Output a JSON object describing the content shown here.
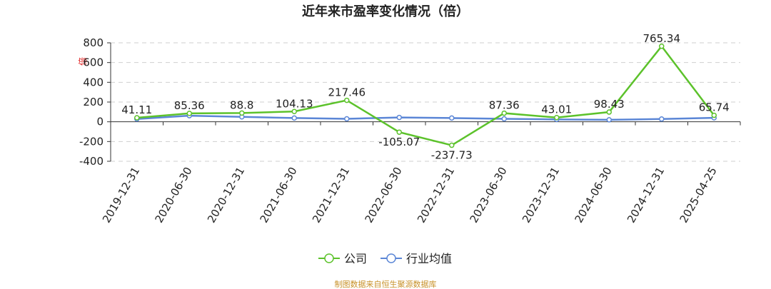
{
  "chart_data": {
    "type": "line",
    "title": "近年来市盈率变化情况（倍）",
    "ylabel": "倍",
    "ylim": [
      -400,
      800
    ],
    "yticks": [
      800,
      600,
      400,
      200,
      0,
      -200,
      -400
    ],
    "grid": true,
    "legend_position": "bottom",
    "categories": [
      "2019-12-31",
      "2020-06-30",
      "2020-12-31",
      "2021-06-30",
      "2021-12-31",
      "2022-06-30",
      "2022-12-31",
      "2023-06-30",
      "2023-12-31",
      "2024-06-30",
      "2024-12-31",
      "2025-04-25"
    ],
    "series": [
      {
        "name": "公司",
        "color": "#5cc22b",
        "values": [
          41.11,
          85.36,
          88.8,
          104.13,
          217.46,
          -105.07,
          -237.73,
          87.36,
          43.01,
          98.43,
          765.34,
          65.74
        ],
        "labels": [
          "41.11",
          "85.36",
          "88.8",
          "104.13",
          "217.46",
          "-105.07",
          "-237.73",
          "87.36",
          "43.01",
          "98.43",
          "765.34",
          "65.74"
        ]
      },
      {
        "name": "行业均值",
        "color": "#5b86d6",
        "values": [
          28,
          62,
          50,
          38,
          30,
          44,
          38,
          30,
          24,
          20,
          28,
          40
        ]
      }
    ]
  },
  "footer": "制图数据来自恒生聚源数据库"
}
